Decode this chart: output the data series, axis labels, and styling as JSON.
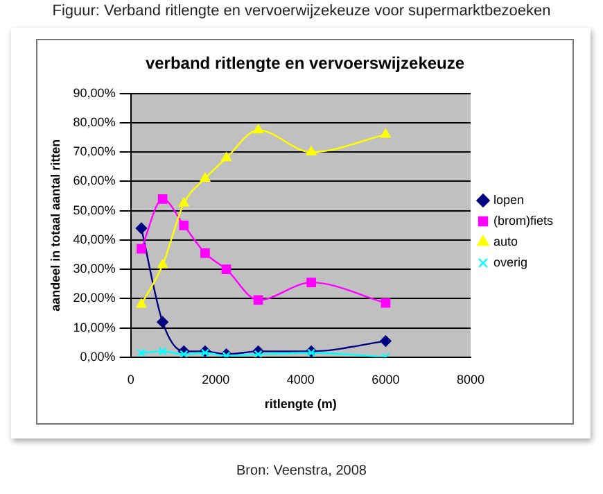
{
  "chart_data": {
    "type": "line",
    "title": "verband ritlengte en vervoerswijzekeuze",
    "xlabel": "ritlengte (m)",
    "ylabel": "aandeel in totaal aantal ritten",
    "annotations": [
      "Figuur: Verband ritlengte en vervoerwijzekeuze voor supermarktbezoeken",
      "Bron: Veenstra, 2008"
    ],
    "x": [
      250,
      750,
      1250,
      1750,
      2250,
      3000,
      4250,
      6000
    ],
    "series": [
      {
        "name": "lopen",
        "color": "#000080",
        "marker": "diamond",
        "values": [
          44,
          12,
          2,
          2,
          1,
          2,
          2,
          5.5
        ]
      },
      {
        "name": "(brom)fiets",
        "color": "#ff00ff",
        "marker": "square",
        "values": [
          37,
          54,
          45,
          35.5,
          30,
          19.5,
          25.5,
          18.5
        ]
      },
      {
        "name": "auto",
        "color": "#ffff00",
        "marker": "triangle",
        "values": [
          18,
          31.5,
          52.5,
          61,
          68,
          77.5,
          70,
          76
        ]
      },
      {
        "name": "overig",
        "color": "#00ffff",
        "marker": "cross",
        "values": [
          1.5,
          2,
          1,
          1.5,
          0.5,
          1,
          1.5,
          0
        ]
      }
    ],
    "xlim": [
      0,
      8000
    ],
    "xticks": [
      0,
      2000,
      4000,
      6000,
      8000
    ],
    "ylim": [
      0,
      90
    ],
    "yticks": [
      {
        "value": 0,
        "label": "0,00%"
      },
      {
        "value": 10,
        "label": "10,00%"
      },
      {
        "value": 20,
        "label": "20,00%"
      },
      {
        "value": 30,
        "label": "30,00%"
      },
      {
        "value": 40,
        "label": "40,00%"
      },
      {
        "value": 50,
        "label": "50,00%"
      },
      {
        "value": 60,
        "label": "60,00%"
      },
      {
        "value": 70,
        "label": "70,00%"
      },
      {
        "value": 80,
        "label": "80,00%"
      },
      {
        "value": 90,
        "label": "90,00%"
      }
    ],
    "grid": "y",
    "legend": "right"
  }
}
